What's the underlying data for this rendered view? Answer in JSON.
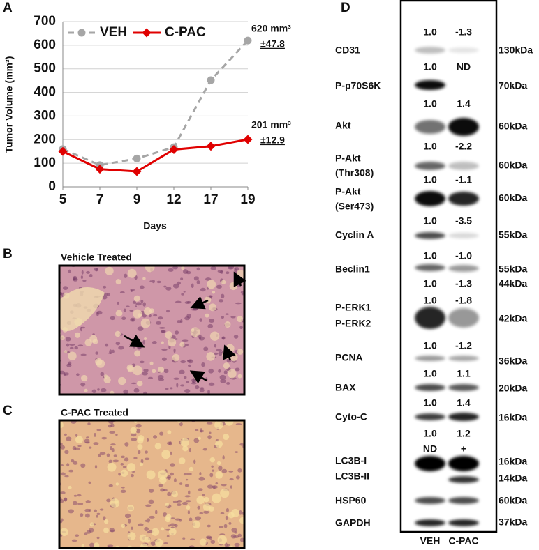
{
  "chart_data": {
    "type": "line",
    "panel_label": "A",
    "ylabel": "Tumor Volume (mm³)",
    "xlabel": "Days",
    "categories": [
      "5",
      "7",
      "9",
      "12",
      "17",
      "19"
    ],
    "series": [
      {
        "name": "VEH",
        "color": "#a6a6a6",
        "values": [
          160,
          92,
          120,
          168,
          452,
          620
        ]
      },
      {
        "name": "C-PAC",
        "color": "#e00000",
        "values": [
          150,
          75,
          65,
          158,
          172,
          201
        ]
      }
    ],
    "ylim": [
      0,
      700
    ],
    "yticks": [
      0,
      100,
      200,
      300,
      400,
      500,
      600,
      700
    ],
    "grid": true,
    "legend": "top",
    "annotations": [
      "620 mm³",
      "±47.8",
      "201 mm³",
      "±12.9"
    ]
  },
  "panels": [
    {
      "label": "B",
      "title": "Vehicle Treated"
    },
    {
      "label": "C",
      "title": "C-PAC Treated"
    }
  ],
  "blot": {
    "label": "D",
    "lanes": [
      "VEH",
      "C-PAC"
    ],
    "rows": [
      {
        "names": [
          "CD31"
        ],
        "quant": [
          [
            "1.0",
            "-1.3"
          ]
        ],
        "kda": [
          "130kDa"
        ]
      },
      {
        "names": [
          "P-p70S6K"
        ],
        "quant": [
          [
            "1.0",
            "ND"
          ]
        ],
        "kda": [
          "70kDa"
        ]
      },
      {
        "names": [
          "Akt"
        ],
        "quant": [
          [
            "1.0",
            "1.4"
          ]
        ],
        "kda": [
          "60kDa"
        ]
      },
      {
        "names": [
          "P-Akt",
          "(Thr308)"
        ],
        "quant": [
          [
            "1.0",
            "-2.2"
          ]
        ],
        "kda": [
          "60kDa"
        ]
      },
      {
        "names": [
          "P-Akt",
          "(Ser473)"
        ],
        "quant": [
          [
            "1.0",
            "-1.1"
          ]
        ],
        "kda": [
          "60kDa"
        ]
      },
      {
        "names": [
          "Cyclin A"
        ],
        "quant": [
          [
            "1.0",
            "-3.5"
          ]
        ],
        "kda": [
          "55kDa"
        ]
      },
      {
        "names": [
          "Beclin1"
        ],
        "quant": [
          [
            "1.0",
            "-1.0"
          ]
        ],
        "kda": [
          "55kDa"
        ]
      },
      {
        "names": [
          "P-ERK1",
          "P-ERK2"
        ],
        "quant": [
          [
            "1.0",
            "-1.3"
          ],
          [
            "1.0",
            "-1.8"
          ]
        ],
        "kda": [
          "44kDa",
          "42kDa"
        ]
      },
      {
        "names": [
          "PCNA"
        ],
        "quant": [
          [
            "1.0",
            "-1.2"
          ]
        ],
        "kda": [
          "36kDa"
        ]
      },
      {
        "names": [
          "BAX"
        ],
        "quant": [
          [
            "1.0",
            "1.1"
          ]
        ],
        "kda": [
          "20kDa"
        ]
      },
      {
        "names": [
          "Cyto-C"
        ],
        "quant": [
          [
            "1.0",
            "1.4"
          ]
        ],
        "kda": [
          "16kDa"
        ]
      },
      {
        "names": [
          "LC3B-I",
          "LC3B-II"
        ],
        "quant": [
          [
            "1.0",
            "1.2"
          ],
          [
            "ND",
            "+"
          ]
        ],
        "kda": [
          "16kDa",
          "14kDa"
        ]
      },
      {
        "names": [
          "HSP60"
        ],
        "quant": [],
        "kda": [
          "60kDa"
        ]
      },
      {
        "names": [
          "GAPDH"
        ],
        "quant": [],
        "kda": [
          "37kDa"
        ]
      }
    ]
  }
}
